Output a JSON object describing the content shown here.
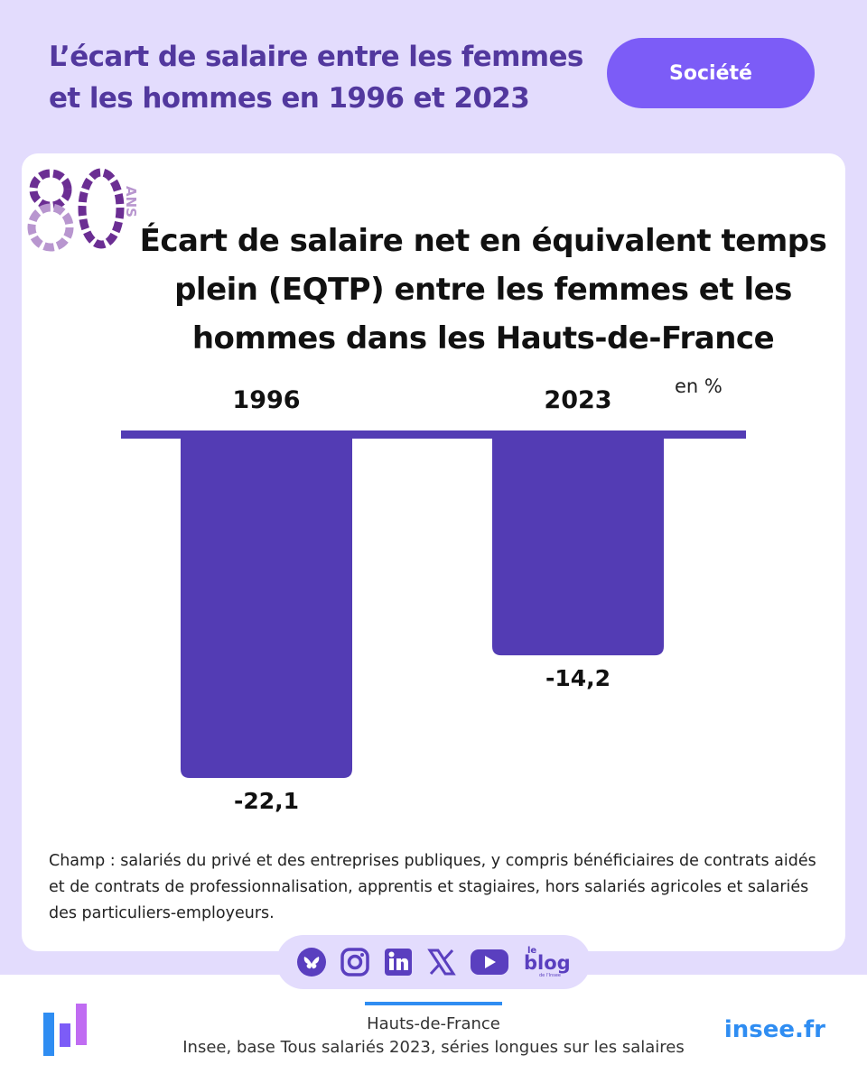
{
  "header": {
    "title_line1": "L’écart de salaire entre les femmes",
    "title_line2": "et les hommes en 1996 et 2023",
    "tag": "Société"
  },
  "logo": {
    "number": "80",
    "suffix": "ANS"
  },
  "chart_data": {
    "type": "bar",
    "title_line1": "Écart de salaire net en équivalent temps",
    "title_line2": "plein (EQTP) entre les femmes et les",
    "title_line3": "hommes dans les Hauts-de-France",
    "unit": "en %",
    "categories": [
      "1996",
      "2023"
    ],
    "values": [
      -22.1,
      -14.2
    ],
    "value_labels": [
      "-22,1",
      "-14,2"
    ],
    "ylim": [
      -22.1,
      0
    ],
    "bar_color": "#533cb4",
    "baseline_color": "#533cb4"
  },
  "note": {
    "line1": "Champ : salariés du privé et des entreprises publiques, y compris bénéficiaires de contrats aidés",
    "line2": "et de contrats de professionnalisation, apprentis et stagiaires, hors salariés agricoles et salariés",
    "line3": "des particuliers-employeurs."
  },
  "social": {
    "icons": [
      "bluesky-icon",
      "instagram-icon",
      "linkedin-icon",
      "x-icon",
      "youtube-icon",
      "blog-icon"
    ],
    "blog_small": "le",
    "blog_text": "blog",
    "blog_sub": "de l'Insee"
  },
  "footer": {
    "region": "Hauts-de-France",
    "source": "Insee, base Tous salariés 2023, séries longues sur les salaires",
    "site": "insee.fr"
  },
  "colors": {
    "background": "#e3dcfd",
    "title": "#52389e",
    "tag": "#7c5cf7",
    "accent_blue": "#2f8df2"
  }
}
